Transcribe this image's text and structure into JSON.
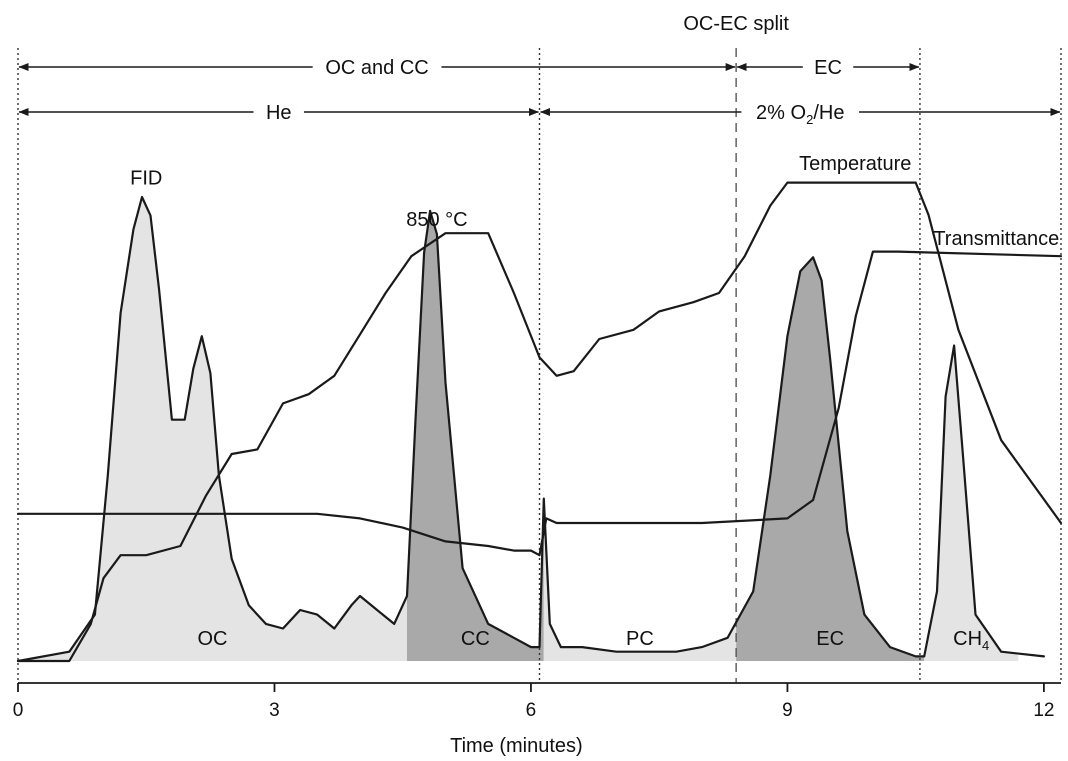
{
  "chart_data": {
    "type": "line",
    "xlabel": "Time (minutes)",
    "xlim": [
      0,
      12.2
    ],
    "xticks": [
      0,
      3,
      6,
      9,
      12
    ],
    "split_label": "OC-EC split",
    "split_time": 8.4,
    "phase_rows": [
      {
        "name": "fraction",
        "segments": [
          {
            "label": "OC and CC",
            "start": 0,
            "end": 8.4
          },
          {
            "label": "EC",
            "start": 8.4,
            "end": 10.55
          }
        ]
      },
      {
        "name": "carrier-gas",
        "segments": [
          {
            "label": "He",
            "start": 0,
            "end": 6.1
          },
          {
            "label": "2% O",
            "subscript": "2",
            "suffix": "/He",
            "start": 6.1,
            "end": 12.2
          }
        ]
      }
    ],
    "boundaries": [
      0,
      6.1,
      8.4,
      10.55,
      12.2
    ],
    "series": [
      {
        "name": "FID",
        "x": [
          0,
          0.6,
          0.9,
          1.05,
          1.2,
          1.35,
          1.45,
          1.55,
          1.65,
          1.8,
          1.95,
          2.05,
          2.15,
          2.25,
          2.35,
          2.5,
          2.7,
          2.9,
          3.1,
          3.3,
          3.5,
          3.7,
          3.9,
          4.0,
          4.2,
          4.4,
          4.55,
          4.65,
          4.75,
          4.82,
          4.9,
          5.0,
          5.2,
          5.5,
          5.8,
          6.0,
          6.1,
          6.15,
          6.22,
          6.35,
          6.6,
          7.0,
          7.4,
          7.7,
          8.0,
          8.3,
          8.6,
          8.8,
          9.0,
          9.15,
          9.3,
          9.4,
          9.5,
          9.7,
          9.9,
          10.2,
          10.5,
          10.6,
          10.75,
          10.85,
          10.95,
          11.05,
          11.2,
          11.5,
          12.0
        ],
        "y": [
          0,
          2,
          10,
          40,
          75,
          93,
          100,
          96,
          80,
          52,
          52,
          63,
          70,
          62,
          40,
          22,
          12,
          8,
          7,
          11,
          10,
          7,
          12,
          14,
          11,
          8,
          14,
          52,
          88,
          97,
          92,
          60,
          20,
          8,
          5,
          3,
          3,
          35,
          8,
          3,
          3,
          2,
          2,
          2,
          3,
          5,
          15,
          40,
          70,
          84,
          87,
          82,
          65,
          28,
          10,
          3,
          1,
          1,
          15,
          57,
          68,
          45,
          10,
          2,
          1
        ]
      },
      {
        "name": "Temperature",
        "x": [
          0,
          0.6,
          0.85,
          1.0,
          1.2,
          1.5,
          1.9,
          2.2,
          2.5,
          2.8,
          3.1,
          3.4,
          3.7,
          4.0,
          4.3,
          4.6,
          5.0,
          5.5,
          5.8,
          6.1,
          6.3,
          6.5,
          6.8,
          7.2,
          7.5,
          7.9,
          8.2,
          8.5,
          8.8,
          9.0,
          10.5,
          10.65,
          11.0,
          11.5,
          12.2
        ],
        "y": [
          0,
          0,
          8,
          18,
          23,
          23,
          25,
          36,
          45,
          46,
          56,
          58,
          62,
          71,
          80,
          88,
          93,
          93,
          80,
          66,
          62,
          63,
          70,
          72,
          76,
          78,
          80,
          88,
          99,
          104,
          104,
          97,
          72,
          48,
          30
        ]
      },
      {
        "name": "Transmittance",
        "x": [
          0,
          3.5,
          4.0,
          4.5,
          5.0,
          5.5,
          5.8,
          6.0,
          6.1,
          6.18,
          6.3,
          7.0,
          8.0,
          9.0,
          9.3,
          9.6,
          9.8,
          10.0,
          10.3,
          12.2
        ],
        "y": [
          32,
          32,
          31,
          29,
          26,
          25,
          24,
          24,
          23,
          31,
          30,
          30,
          30,
          31,
          35,
          55,
          75,
          89,
          89,
          88
        ]
      }
    ],
    "area_fills": [
      {
        "label": "OC",
        "series": "FID",
        "start": 0,
        "end": 4.55,
        "shade": "light"
      },
      {
        "label": "CC",
        "series": "FID",
        "start": 4.55,
        "end": 6.15,
        "shade": "dark"
      },
      {
        "label": "PC",
        "series": "FID",
        "start": 6.15,
        "end": 8.4,
        "shade": "light"
      },
      {
        "label": "EC",
        "series": "FID",
        "start": 8.4,
        "end": 10.6,
        "shade": "dark"
      },
      {
        "label": "CH",
        "subscript": "4",
        "series": "FID",
        "start": 10.6,
        "end": 11.7,
        "shade": "light"
      }
    ],
    "annotations": [
      {
        "text": "850 °C",
        "x": 4.9,
        "y": 95
      },
      {
        "text": "FID",
        "x": 1.5,
        "y": 104
      }
    ],
    "colors": {
      "light_fill": "#e4e4e4",
      "dark_fill": "#a9a9a9",
      "line": "#1a1a1a"
    },
    "grid": false
  }
}
